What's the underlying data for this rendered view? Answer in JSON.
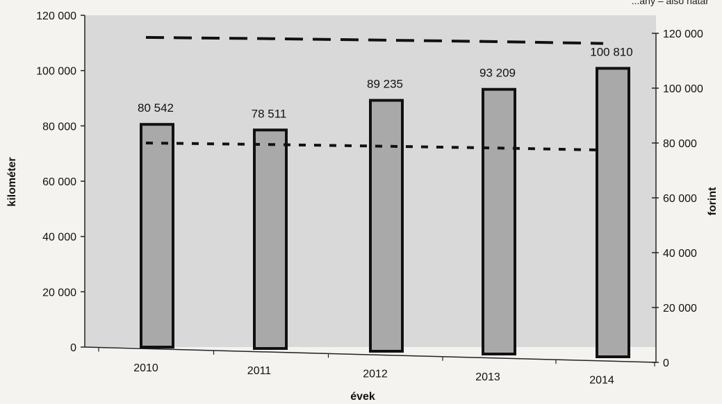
{
  "chart_data": {
    "type": "bar",
    "categories": [
      "2010",
      "2011",
      "2012",
      "2013",
      "2014"
    ],
    "values": [
      80542,
      78511,
      89235,
      93209,
      100810
    ],
    "data_labels": [
      "80 542",
      "78 511",
      "89 235",
      "93 209",
      "100 810"
    ],
    "xlabel": "évek",
    "ylabel": "kilométer",
    "y2label": "forint",
    "ylim": [
      0,
      120000
    ],
    "y2lim": [
      0,
      120000
    ],
    "yticks": [
      "0",
      "20 000",
      "40 000",
      "60 000",
      "80 000",
      "100 000",
      "120 000"
    ],
    "y2ticks": [
      "0",
      "20 000",
      "40 000",
      "60 000",
      "80 000",
      "100 000",
      "120 000"
    ],
    "lines": [
      {
        "style": "long-dash",
        "axis": "right",
        "values": [
          118500,
          117800,
          117000,
          116200,
          115300
        ]
      },
      {
        "style": "short-dash",
        "axis": "right",
        "values": [
          80000,
          79200,
          78300,
          77400,
          76400
        ]
      }
    ],
    "legend_fragment": "...ány – alsó határ",
    "grid": false,
    "colors": {
      "bar": "#a9a9a9",
      "bar_edge": "#111111",
      "plot_bg": "#d9d9d9",
      "page_bg": "#f4f3ef"
    }
  }
}
